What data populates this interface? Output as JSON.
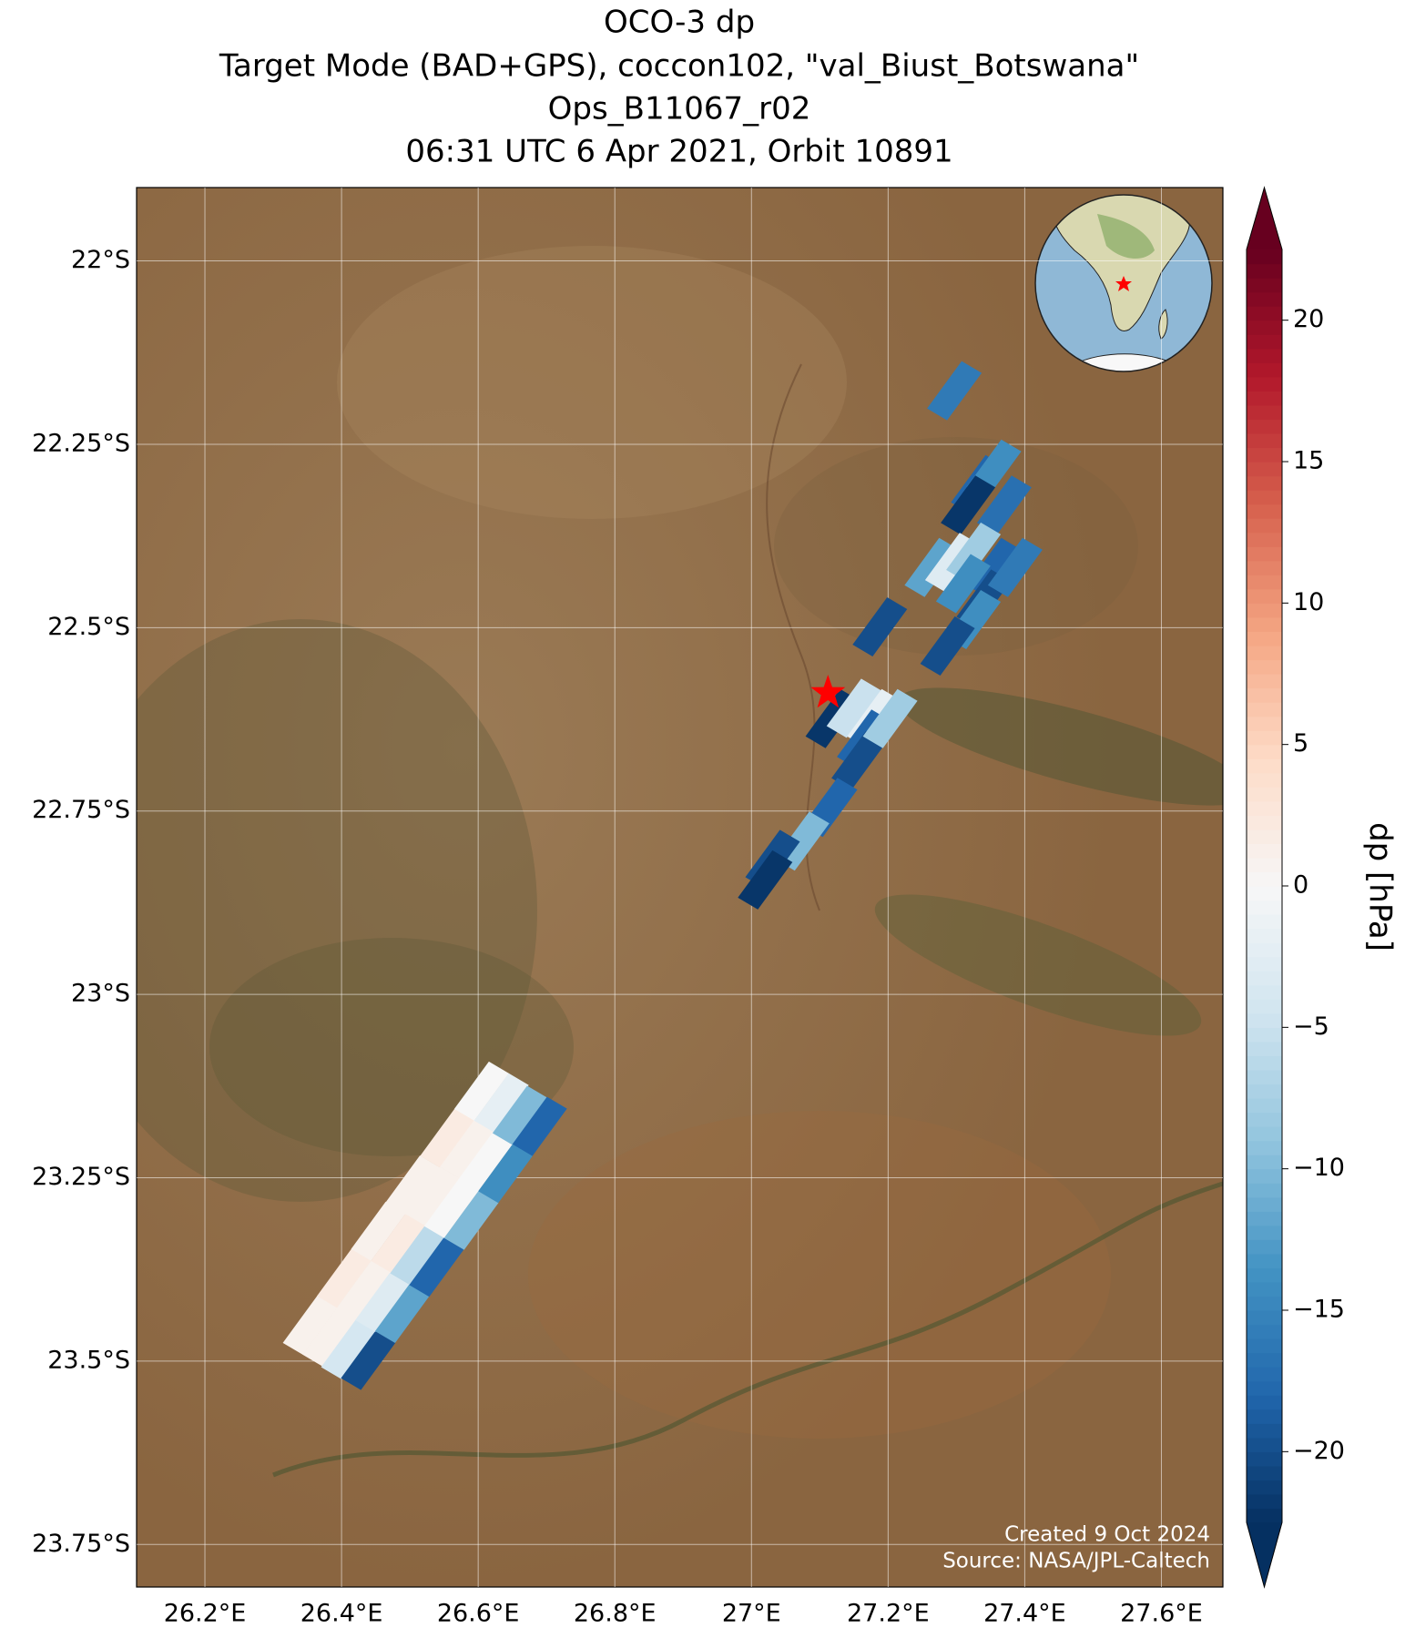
{
  "chart_data": {
    "type": "map",
    "title": [
      "OCO-3 dp",
      "Target Mode (BAD+GPS), coccon102, \"val_Biust_Botswana\"",
      "Ops_B11067_r02",
      "06:31 UTC 6 Apr 2021, Orbit 10891"
    ],
    "xlim": [
      26.1,
      27.69
    ],
    "ylim": [
      -23.808,
      -21.9
    ],
    "xticks": [
      {
        "value": 26.2,
        "label": "26.2°E"
      },
      {
        "value": 26.4,
        "label": "26.4°E"
      },
      {
        "value": 26.6,
        "label": "26.6°E"
      },
      {
        "value": 26.8,
        "label": "26.8°E"
      },
      {
        "value": 27,
        "label": "27°E"
      },
      {
        "value": 27.2,
        "label": "27.2°E"
      },
      {
        "value": 27.4,
        "label": "27.4°E"
      },
      {
        "value": 27.6,
        "label": "27.6°E"
      }
    ],
    "yticks": [
      {
        "value": -22,
        "label": "22°S"
      },
      {
        "value": -22.25,
        "label": "22.25°S"
      },
      {
        "value": -22.5,
        "label": "22.5°S"
      },
      {
        "value": -22.75,
        "label": "22.75°S"
      },
      {
        "value": -23,
        "label": "23°S"
      },
      {
        "value": -23.25,
        "label": "23.25°S"
      },
      {
        "value": -23.5,
        "label": "23.5°S"
      },
      {
        "value": -23.75,
        "label": "23.75°S"
      }
    ],
    "grid": true,
    "soundings": {
      "lon": [
        26.354,
        26.383,
        26.41,
        26.439,
        26.404,
        26.433,
        26.46,
        26.489,
        26.454,
        26.483,
        26.511,
        26.539,
        26.504,
        26.533,
        26.561,
        26.59,
        26.555,
        26.584,
        26.611,
        26.64,
        26.605,
        26.634,
        26.661,
        26.69,
        27.297,
        27.332,
        27.355,
        27.317,
        27.37,
        27.264,
        27.294,
        27.325,
        27.355,
        27.31,
        27.34,
        27.386,
        27.325,
        27.188,
        27.287,
        27.119,
        27.15,
        27.18,
        27.165,
        27.157,
        27.203,
        27.115,
        27.074,
        27.031,
        27.02
      ],
      "lat": [
        -23.451,
        -23.467,
        -23.484,
        -23.499,
        -23.387,
        -23.403,
        -23.42,
        -23.435,
        -23.323,
        -23.339,
        -23.356,
        -23.372,
        -23.26,
        -23.275,
        -23.292,
        -23.308,
        -23.196,
        -23.211,
        -23.228,
        -23.244,
        -23.132,
        -23.148,
        -23.165,
        -23.18,
        -22.177,
        -22.305,
        -22.284,
        -22.333,
        -22.333,
        -22.418,
        -22.411,
        -22.397,
        -22.418,
        -22.44,
        -22.461,
        -22.418,
        -22.489,
        -22.499,
        -22.525,
        -22.624,
        -22.61,
        -22.624,
        -22.652,
        -22.681,
        -22.624,
        -22.745,
        -22.791,
        -22.816,
        -22.844
      ],
      "dp": [
        1,
        1,
        -4,
        -20,
        2,
        1,
        -3,
        -12,
        1,
        2,
        -6,
        -18,
        1,
        1,
        0,
        -10,
        2,
        1,
        0,
        -14,
        0,
        -2,
        -10,
        -18,
        -16,
        -18,
        -14,
        -22,
        -17,
        -12,
        -3,
        -8,
        -18,
        -14,
        -20,
        -16,
        -14,
        -20,
        -20,
        -22,
        -5,
        -2,
        -18,
        -20,
        -8,
        -18,
        -10,
        -20,
        -22
      ]
    },
    "target": {
      "lon": 27.112,
      "lat": -22.589
    },
    "colorbar": {
      "label": "dp [hPa]",
      "clim": [
        -22.5,
        22.5
      ],
      "colors": [
        "#053061",
        "#2166ac",
        "#4393c3",
        "#92c5de",
        "#d1e5f0",
        "#f7f7f7",
        "#fddbc7",
        "#f4a582",
        "#d6604d",
        "#b2182b",
        "#67001f"
      ],
      "ticks": [
        {
          "value": -20,
          "label": "−20"
        },
        {
          "value": -15,
          "label": "−15"
        },
        {
          "value": -10,
          "label": "−10"
        },
        {
          "value": -5,
          "label": "−5"
        },
        0,
        5,
        10,
        15,
        20
      ]
    },
    "annotations": [
      "Created 9 Oct 2024",
      "Source: NASA/JPL-Caltech"
    ]
  }
}
